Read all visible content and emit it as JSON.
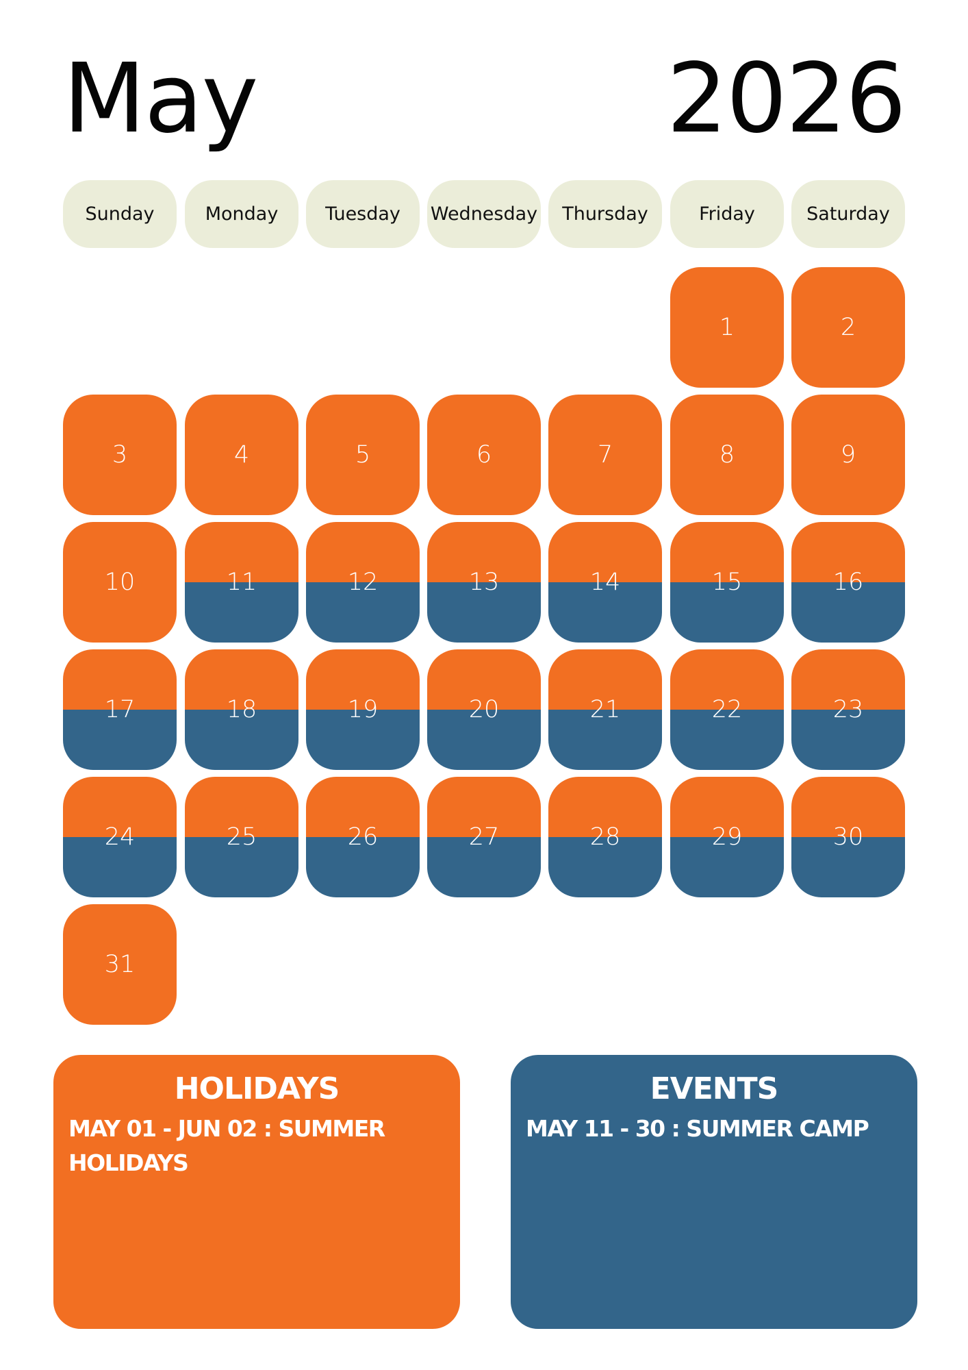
{
  "header": {
    "month": "May",
    "year": "2026"
  },
  "colors": {
    "orange": "#F26F22",
    "blue": "#33658A",
    "header_bg": "#EBEDD9",
    "text_dark": "#050505"
  },
  "weekdays": [
    "Sunday",
    "Monday",
    "Tuesday",
    "Wednesday",
    "Thursday",
    "Friday",
    "Saturday"
  ],
  "first_weekday_index": 5,
  "days": [
    {
      "day": "1",
      "style": "orange"
    },
    {
      "day": "2",
      "style": "orange"
    },
    {
      "day": "3",
      "style": "orange"
    },
    {
      "day": "4",
      "style": "orange"
    },
    {
      "day": "5",
      "style": "orange"
    },
    {
      "day": "6",
      "style": "orange"
    },
    {
      "day": "7",
      "style": "orange"
    },
    {
      "day": "8",
      "style": "orange"
    },
    {
      "day": "9",
      "style": "orange"
    },
    {
      "day": "10",
      "style": "orange"
    },
    {
      "day": "11",
      "style": "split"
    },
    {
      "day": "12",
      "style": "split"
    },
    {
      "day": "13",
      "style": "split"
    },
    {
      "day": "14",
      "style": "split"
    },
    {
      "day": "15",
      "style": "split"
    },
    {
      "day": "16",
      "style": "split"
    },
    {
      "day": "17",
      "style": "split"
    },
    {
      "day": "18",
      "style": "split"
    },
    {
      "day": "19",
      "style": "split"
    },
    {
      "day": "20",
      "style": "split"
    },
    {
      "day": "21",
      "style": "split"
    },
    {
      "day": "22",
      "style": "split"
    },
    {
      "day": "23",
      "style": "split"
    },
    {
      "day": "24",
      "style": "split"
    },
    {
      "day": "25",
      "style": "split"
    },
    {
      "day": "26",
      "style": "split"
    },
    {
      "day": "27",
      "style": "split"
    },
    {
      "day": "28",
      "style": "split"
    },
    {
      "day": "29",
      "style": "split"
    },
    {
      "day": "30",
      "style": "split"
    },
    {
      "day": "31",
      "style": "orange"
    }
  ],
  "holidays": {
    "title": "HOLIDAYS",
    "text": "MAY 01 - JUN 02 : SUMMER HOLIDAYS"
  },
  "events": {
    "title": "EVENTS",
    "text": "MAY 11 - 30 : SUMMER CAMP"
  }
}
